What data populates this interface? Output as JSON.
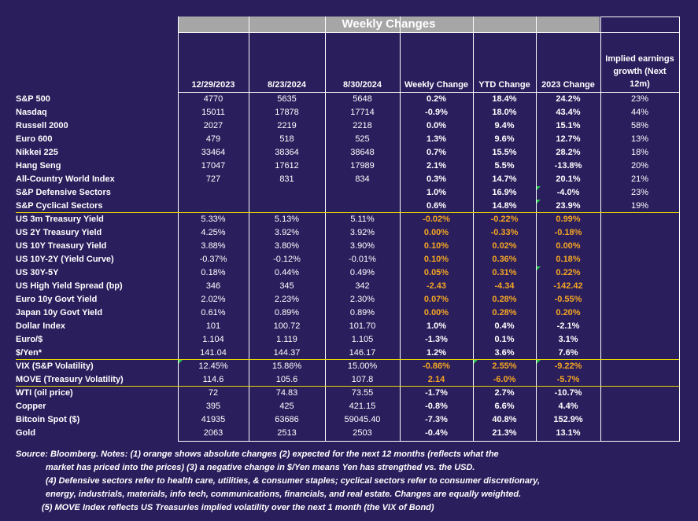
{
  "title": "Weekly Changes",
  "columns": [
    "12/29/2023",
    "8/23/2024",
    "8/30/2024",
    "Weekly Change",
    "YTD Change",
    "2023 Change"
  ],
  "implied_header": [
    "Implied earnings",
    "growth (Next",
    "12m)"
  ],
  "colors": {
    "background": "#2a1e5c",
    "header_bar": "#a6a6a6",
    "orange": "#f5a623",
    "divider": "#e8d800"
  },
  "rows": [
    {
      "label": "S&P 500",
      "c1": "4770",
      "c2": "5635",
      "c3": "5648",
      "w": "0.2%",
      "ytd": "18.4%",
      "y23": "24.2%",
      "eg": "23%"
    },
    {
      "label": "Nasdaq",
      "c1": "15011",
      "c2": "17878",
      "c3": "17714",
      "w": "-0.9%",
      "ytd": "18.0%",
      "y23": "43.4%",
      "eg": "44%"
    },
    {
      "label": "Russell 2000",
      "c1": "2027",
      "c2": "2219",
      "c3": "2218",
      "w": "0.0%",
      "ytd": "9.4%",
      "y23": "15.1%",
      "eg": "58%"
    },
    {
      "label": "Euro 600",
      "c1": "479",
      "c2": "518",
      "c3": "525",
      "w": "1.3%",
      "ytd": "9.6%",
      "y23": "12.7%",
      "eg": "13%"
    },
    {
      "label": "Nikkei 225",
      "c1": "33464",
      "c2": "38364",
      "c3": "38648",
      "w": "0.7%",
      "ytd": "15.5%",
      "y23": "28.2%",
      "eg": "18%"
    },
    {
      "label": "Hang Seng",
      "c1": "17047",
      "c2": "17612",
      "c3": "17989",
      "w": "2.1%",
      "ytd": "5.5%",
      "y23": "-13.8%",
      "eg": "20%"
    },
    {
      "label": "All-Country World Index",
      "c1": "727",
      "c2": "831",
      "c3": "834",
      "w": "0.3%",
      "ytd": "14.7%",
      "y23": "20.1%",
      "eg": "21%"
    },
    {
      "label": "S&P Defensive Sectors",
      "c1": "",
      "c2": "",
      "c3": "",
      "w": "1.0%",
      "ytd": "16.9%",
      "y23": "-4.0%",
      "eg": "23%"
    },
    {
      "label": "S&P Cyclical Sectors",
      "c1": "",
      "c2": "",
      "c3": "",
      "w": "0.6%",
      "ytd": "14.8%",
      "y23": "23.9%",
      "eg": "19%"
    },
    {
      "label": "US 3m Treasury Yield",
      "c1": "5.33%",
      "c2": "5.13%",
      "c3": "5.11%",
      "w": "-0.02%",
      "ytd": "-0.22%",
      "y23": "0.99%",
      "eg": ""
    },
    {
      "label": "US 2Y Treasury Yield",
      "c1": "4.25%",
      "c2": "3.92%",
      "c3": "3.92%",
      "w": "0.00%",
      "ytd": "-0.33%",
      "y23": "-0.18%",
      "eg": ""
    },
    {
      "label": "US 10Y Treasury Yield",
      "c1": "3.88%",
      "c2": "3.80%",
      "c3": "3.90%",
      "w": "0.10%",
      "ytd": "0.02%",
      "y23": "0.00%",
      "eg": ""
    },
    {
      "label": "US 10Y-2Y (Yield Curve)",
      "c1": "-0.37%",
      "c2": "-0.12%",
      "c3": "-0.01%",
      "w": "0.10%",
      "ytd": "0.36%",
      "y23": "0.18%",
      "eg": ""
    },
    {
      "label": "US 30Y-5Y",
      "c1": "0.18%",
      "c2": "0.44%",
      "c3": "0.49%",
      "w": "0.05%",
      "ytd": "0.31%",
      "y23": "0.22%",
      "eg": ""
    },
    {
      "label": "US High Yield Spread (bp)",
      "c1": "346",
      "c2": "345",
      "c3": "342",
      "w": "-2.43",
      "ytd": "-4.34",
      "y23": "-142.42",
      "eg": ""
    },
    {
      "label": "Euro 10y Govt Yield",
      "c1": "2.02%",
      "c2": "2.23%",
      "c3": "2.30%",
      "w": "0.07%",
      "ytd": "0.28%",
      "y23": "-0.55%",
      "eg": ""
    },
    {
      "label": "Japan 10y Govt Yield",
      "c1": "0.61%",
      "c2": "0.89%",
      "c3": "0.89%",
      "w": "0.00%",
      "ytd": "0.28%",
      "y23": "0.20%",
      "eg": ""
    },
    {
      "label": "Dollar Index",
      "c1": "101",
      "c2": "100.72",
      "c3": "101.70",
      "w": "1.0%",
      "ytd": "0.4%",
      "y23": "-2.1%",
      "eg": ""
    },
    {
      "label": "Euro/$",
      "c1": "1.104",
      "c2": "1.119",
      "c3": "1.105",
      "w": "-1.3%",
      "ytd": "0.1%",
      "y23": "3.1%",
      "eg": ""
    },
    {
      "label": "$/Yen*",
      "c1": "141.04",
      "c2": "144.37",
      "c3": "146.17",
      "w": "1.2%",
      "ytd": "3.6%",
      "y23": "7.6%",
      "eg": ""
    },
    {
      "label": "VIX (S&P Volatility)",
      "c1": "12.45%",
      "c2": "15.86%",
      "c3": "15.00%",
      "w": "-0.86%",
      "ytd": "2.55%",
      "y23": "-9.22%",
      "eg": ""
    },
    {
      "label": "MOVE (Treasury Volatility)",
      "c1": "114.6",
      "c2": "105.6",
      "c3": "107.8",
      "w": "2.14",
      "ytd": "-6.0%",
      "y23": "-5.7%",
      "eg": ""
    },
    {
      "label": "WTI (oil price)",
      "c1": "72",
      "c2": "74.83",
      "c3": "73.55",
      "w": "-1.7%",
      "ytd": "2.7%",
      "y23": "-10.7%",
      "eg": ""
    },
    {
      "label": "Copper",
      "c1": "395",
      "c2": "425",
      "c3": "421.15",
      "w": "-0.8%",
      "ytd": "6.6%",
      "y23": "4.4%",
      "eg": ""
    },
    {
      "label": "Bitcoin Spot ($)",
      "c1": "41935",
      "c2": "63686",
      "c3": "59045.40",
      "w": "-7.3%",
      "ytd": "40.8%",
      "y23": "152.9%",
      "eg": ""
    },
    {
      "label": "Gold",
      "c1": "2063",
      "c2": "2513",
      "c3": "2503",
      "w": "-0.4%",
      "ytd": "21.3%",
      "y23": "13.1%",
      "eg": ""
    }
  ],
  "notes": [
    "Source: Bloomberg. Notes: (1) orange shows absolute changes (2) expected for the next 12 months (reflects what the",
    "market has priced into the prices) (3) a negative change in $/Yen means Yen has strengthed vs. the USD.",
    "(4) Defensive sectors refer to health care, utilities, & consumer staples; cyclical sectors refer to consumer discretionary,",
    "energy, industrials, materials, info tech, communications, financials, and real estate. Changes are equally weighted.",
    "(5) MOVE Index reflects US Treasuries implied volatility over the next 1 month (the VIX of Bond)"
  ]
}
